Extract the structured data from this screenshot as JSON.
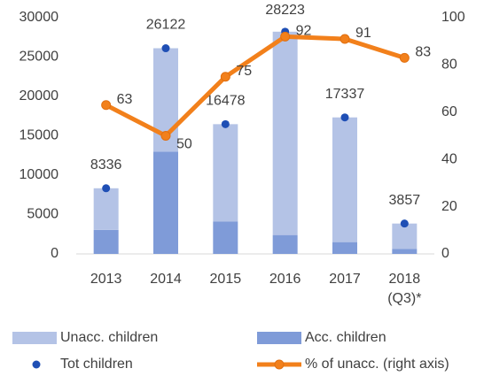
{
  "chart_data": {
    "type": "bar",
    "categories": [
      "2013",
      "2014",
      "2015",
      "2016",
      "2017",
      "2018 (Q3)*"
    ],
    "series": [
      {
        "name": "Unacc. children",
        "color": "#b4c3e6",
        "stack": true,
        "values": [
          5286,
          13122,
          12378,
          25823,
          15837,
          3207
        ]
      },
      {
        "name": "Acc. children",
        "color": "#7f9bd8",
        "stack": true,
        "values": [
          3050,
          13000,
          4100,
          2400,
          1500,
          650
        ]
      },
      {
        "name": "Tot children",
        "color": "#1f4fb5",
        "mark": "dot",
        "values": [
          8336,
          26122,
          16478,
          28223,
          17337,
          3857
        ]
      },
      {
        "name": "% of unacc. (right axis)",
        "color": "#f2801b",
        "mark": "line",
        "axis": "y2",
        "values": [
          63,
          50,
          75,
          92,
          91,
          83
        ]
      }
    ],
    "ylim": [
      0,
      30000
    ],
    "yticks": [
      0,
      5000,
      10000,
      15000,
      20000,
      25000,
      30000
    ],
    "y2lim": [
      0,
      100
    ],
    "y2ticks": [
      0,
      20,
      40,
      60,
      80,
      100
    ],
    "grid": false
  }
}
